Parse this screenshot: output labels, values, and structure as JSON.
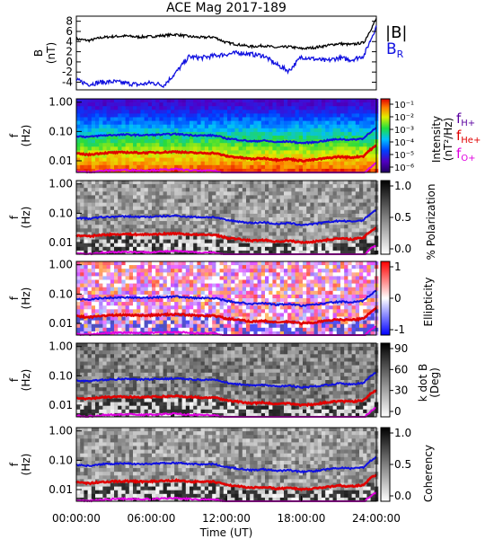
{
  "title": "ACE Mag 2017-189",
  "colors": {
    "h_plus": "#1010e0",
    "he_plus": "#e00000",
    "o_plus": "#e000e0",
    "bfield": "#000000",
    "br": "#1010e0"
  },
  "chart_data": [
    {
      "type": "line",
      "panel": "B",
      "ylabel": "B (nT)",
      "ylim": [
        -5.5,
        9
      ],
      "yticks": [
        -4,
        -2,
        0,
        2,
        4,
        6,
        8
      ],
      "ytick_labels": [
        "-4",
        "-2",
        "0",
        "2",
        "4",
        "6",
        "8"
      ],
      "x": [
        0,
        1,
        2,
        3,
        4,
        5,
        6,
        7,
        8,
        9,
        10,
        11,
        12,
        13,
        14,
        15,
        16,
        17,
        18,
        19,
        20,
        21,
        22,
        23,
        24
      ],
      "series": [
        {
          "name": "|B|",
          "values": [
            4.5,
            4.2,
            4.8,
            5.0,
            5.1,
            4.9,
            5.0,
            5.2,
            5.4,
            5.0,
            4.8,
            4.9,
            3.8,
            3.4,
            3.0,
            3.2,
            2.8,
            3.0,
            2.6,
            2.8,
            3.2,
            3.6,
            3.4,
            3.8,
            8.5
          ]
        },
        {
          "name": "B_R",
          "values": [
            -3.6,
            -4.4,
            -4.0,
            -3.9,
            -4.2,
            -4.5,
            -4.1,
            -4.6,
            -2.0,
            1.0,
            0.8,
            1.2,
            1.5,
            1.8,
            1.5,
            1.2,
            -0.5,
            -1.8,
            1.0,
            0.6,
            0.2,
            0.8,
            0.4,
            1.2,
            7.0
          ]
        }
      ],
      "legend": [
        "|B|",
        "B_R"
      ],
      "legend_placement": "right"
    },
    {
      "type": "heatmap",
      "panel": "power",
      "ylabel": "f (Hz)",
      "yscale": "log",
      "yticks": [
        0.01,
        0.1,
        1.0
      ],
      "ytick_labels": [
        "0.01",
        "0.10",
        "1.00"
      ],
      "colorbar_label": "Intensity (nT²/Hz)",
      "colorbar_ticks": [
        "10⁻¹",
        "10⁻²",
        "10⁻³",
        "10⁻⁴",
        "10⁻⁵",
        "10⁻⁶"
      ],
      "legend": [
        "f_H+",
        "f_He+",
        "f_O+"
      ]
    },
    {
      "type": "heatmap",
      "panel": "polarization",
      "ylabel": "f (Hz)",
      "colorbar_label": "% Polarization",
      "colorbar_ticks": [
        "1.0",
        "0.5",
        "0.0"
      ]
    },
    {
      "type": "heatmap",
      "panel": "ellipticity",
      "ylabel": "f (Hz)",
      "colorbar_label": "Ellipticity",
      "colorbar_ticks": [
        "1",
        "0",
        "-1"
      ]
    },
    {
      "type": "heatmap",
      "panel": "kdotb",
      "ylabel": "f (Hz)",
      "colorbar_label": "k dot B (Deg)",
      "colorbar_ticks": [
        "90",
        "60",
        "30",
        "0"
      ]
    },
    {
      "type": "heatmap",
      "panel": "coherency",
      "ylabel": "f (Hz)",
      "colorbar_label": "Coherency",
      "colorbar_ticks": [
        "1.0",
        "0.5",
        "0.0"
      ]
    }
  ],
  "gyro": {
    "x": [
      0,
      1,
      2,
      3,
      4,
      5,
      6,
      7,
      8,
      9,
      10,
      11,
      12,
      13,
      14,
      15,
      16,
      17,
      18,
      19,
      20,
      21,
      22,
      23,
      24
    ],
    "f_h": [
      0.07,
      0.065,
      0.073,
      0.076,
      0.078,
      0.075,
      0.076,
      0.079,
      0.082,
      0.076,
      0.073,
      0.074,
      0.058,
      0.052,
      0.046,
      0.049,
      0.043,
      0.046,
      0.04,
      0.043,
      0.049,
      0.055,
      0.052,
      0.058,
      0.13
    ]
  },
  "xaxis": {
    "label": "Time (UT)",
    "ticks": [
      "00:00:00",
      "06:00:00",
      "12:00:00",
      "18:00:00",
      "24:00:00"
    ],
    "tick_values": [
      0,
      6,
      12,
      18,
      24
    ]
  },
  "labels": {
    "b_axis": "B",
    "b_unit": "(nT)",
    "f_axis": "f",
    "f_unit": "(Hz)",
    "legend_b": "|B|",
    "legend_br_main": "B",
    "legend_br_sub": "R",
    "f_main": "f",
    "sub_h": "H+",
    "sub_he": "He+",
    "sub_o": "O+",
    "int_1": "Intensity",
    "int_2": "(nT²/Hz)",
    "pol": "% Polarization",
    "ell": "Ellipticity",
    "kdb_1": "k dot B",
    "kdb_2": "(Deg)",
    "coh": "Coherency"
  }
}
